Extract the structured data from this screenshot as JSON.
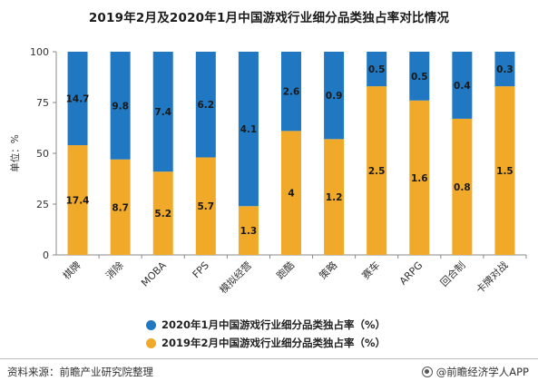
{
  "title": "2019年2月及2020年1月中国游戏行业细分品类独占率对比情况",
  "colors": {
    "series_2020": "#1f78c1",
    "series_2019": "#f0a929",
    "axis": "#888888"
  },
  "chart_data": {
    "type": "bar",
    "stacked": true,
    "categories": [
      "棋牌",
      "消除",
      "MOBA",
      "FPS",
      "模拟经营",
      "跑酷",
      "策略",
      "赛车",
      "ARPG",
      "回合制",
      "卡牌对战"
    ],
    "series": [
      {
        "name": "2019年2月中国游戏行业细分品类独占率（%）",
        "color": "#f0a929",
        "values": [
          17.4,
          8.7,
          5.2,
          5.7,
          1.3,
          4,
          1.2,
          2.5,
          1.6,
          0.8,
          1.5
        ],
        "share": [
          54,
          47,
          41,
          48,
          24,
          61,
          57,
          83,
          76,
          67,
          83
        ]
      },
      {
        "name": "2020年1月中国游戏行业细分品类独占率（%）",
        "color": "#1f78c1",
        "values": [
          14.7,
          9.8,
          7.4,
          6.2,
          4.1,
          2.6,
          0.9,
          0.5,
          0.5,
          0.4,
          0.3
        ]
      }
    ],
    "ylabel": "单位：%",
    "ylim": [
      0,
      100
    ],
    "yticks": [
      0,
      25,
      50,
      75,
      100
    ],
    "grid": false,
    "legend": "bottom"
  },
  "legend": {
    "items": [
      {
        "label": "2020年1月中国游戏行业细分品类独占率（%）",
        "color": "#1f78c1"
      },
      {
        "label": "2019年2月中国游戏行业细分品类独占率（%）",
        "color": "#f0a929"
      }
    ]
  },
  "footer": {
    "source": "资料来源：前瞻产业研究院整理",
    "brand": "@前瞻经济学人APP"
  }
}
